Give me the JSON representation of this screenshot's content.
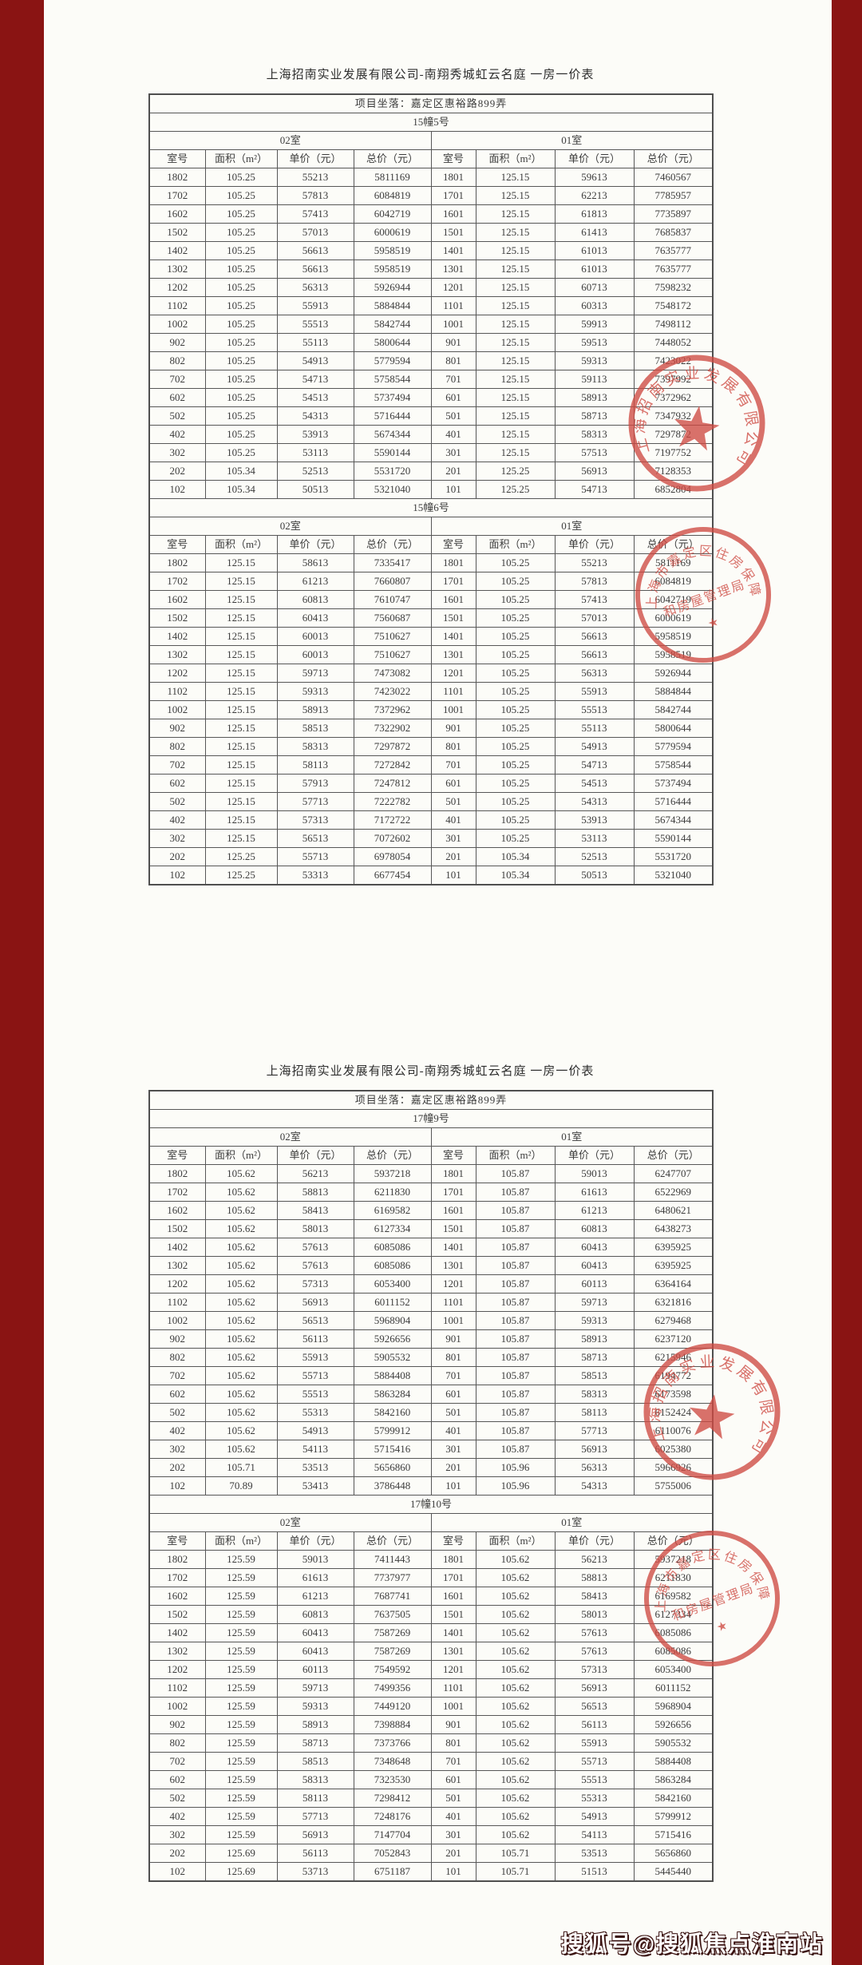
{
  "page": {
    "watermark": "搜狐号@搜狐焦点淮南站",
    "colors": {
      "border_maroon": "#8a1413",
      "paper": "#fcfcf8",
      "seal_red": "#cf4b43",
      "table_line": "#575757",
      "text": "#3c3c3c"
    }
  },
  "seals": {
    "company": {
      "icon": "five-pointed-star-icon",
      "text": "上海招南实业发展有限公司"
    },
    "government": {
      "arc_text": "上海市嘉定区住房保障",
      "line_text": "和房屋管理局"
    }
  },
  "documents": [
    {
      "title": "上海招南实业发展有限公司-南翔秀城虹云名庭 一房一价表",
      "location": "项目坐落：嘉定区惠裕路899弄",
      "unit_headers": [
        "02室",
        "01室"
      ],
      "column_headers": [
        "室号",
        "面积（m²）",
        "单价（元）",
        "总价（元）"
      ],
      "sections": [
        {
          "building": "15幢5号",
          "rows": [
            [
              "1802",
              "105.25",
              "55213",
              "5811169",
              "1801",
              "125.15",
              "59613",
              "7460567"
            ],
            [
              "1702",
              "105.25",
              "57813",
              "6084819",
              "1701",
              "125.15",
              "62213",
              "7785957"
            ],
            [
              "1602",
              "105.25",
              "57413",
              "6042719",
              "1601",
              "125.15",
              "61813",
              "7735897"
            ],
            [
              "1502",
              "105.25",
              "57013",
              "6000619",
              "1501",
              "125.15",
              "61413",
              "7685837"
            ],
            [
              "1402",
              "105.25",
              "56613",
              "5958519",
              "1401",
              "125.15",
              "61013",
              "7635777"
            ],
            [
              "1302",
              "105.25",
              "56613",
              "5958519",
              "1301",
              "125.15",
              "61013",
              "7635777"
            ],
            [
              "1202",
              "105.25",
              "56313",
              "5926944",
              "1201",
              "125.15",
              "60713",
              "7598232"
            ],
            [
              "1102",
              "105.25",
              "55913",
              "5884844",
              "1101",
              "125.15",
              "60313",
              "7548172"
            ],
            [
              "1002",
              "105.25",
              "55513",
              "5842744",
              "1001",
              "125.15",
              "59913",
              "7498112"
            ],
            [
              "902",
              "105.25",
              "55113",
              "5800644",
              "901",
              "125.15",
              "59513",
              "7448052"
            ],
            [
              "802",
              "105.25",
              "54913",
              "5779594",
              "801",
              "125.15",
              "59313",
              "7423022"
            ],
            [
              "702",
              "105.25",
              "54713",
              "5758544",
              "701",
              "125.15",
              "59113",
              "7397992"
            ],
            [
              "602",
              "105.25",
              "54513",
              "5737494",
              "601",
              "125.15",
              "58913",
              "7372962"
            ],
            [
              "502",
              "105.25",
              "54313",
              "5716444",
              "501",
              "125.15",
              "58713",
              "7347932"
            ],
            [
              "402",
              "105.25",
              "53913",
              "5674344",
              "401",
              "125.15",
              "58313",
              "7297872"
            ],
            [
              "302",
              "105.25",
              "53113",
              "5590144",
              "301",
              "125.15",
              "57513",
              "7197752"
            ],
            [
              "202",
              "105.34",
              "52513",
              "5531720",
              "201",
              "125.25",
              "56913",
              "7128353"
            ],
            [
              "102",
              "105.34",
              "50513",
              "5321040",
              "101",
              "125.25",
              "54713",
              "6852804"
            ]
          ]
        },
        {
          "building": "15幢6号",
          "rows": [
            [
              "1802",
              "125.15",
              "58613",
              "7335417",
              "1801",
              "105.25",
              "55213",
              "5811169"
            ],
            [
              "1702",
              "125.15",
              "61213",
              "7660807",
              "1701",
              "105.25",
              "57813",
              "6084819"
            ],
            [
              "1602",
              "125.15",
              "60813",
              "7610747",
              "1601",
              "105.25",
              "57413",
              "6042719"
            ],
            [
              "1502",
              "125.15",
              "60413",
              "7560687",
              "1501",
              "105.25",
              "57013",
              "6000619"
            ],
            [
              "1402",
              "125.15",
              "60013",
              "7510627",
              "1401",
              "105.25",
              "56613",
              "5958519"
            ],
            [
              "1302",
              "125.15",
              "60013",
              "7510627",
              "1301",
              "105.25",
              "56613",
              "5958519"
            ],
            [
              "1202",
              "125.15",
              "59713",
              "7473082",
              "1201",
              "105.25",
              "56313",
              "5926944"
            ],
            [
              "1102",
              "125.15",
              "59313",
              "7423022",
              "1101",
              "105.25",
              "55913",
              "5884844"
            ],
            [
              "1002",
              "125.15",
              "58913",
              "7372962",
              "1001",
              "105.25",
              "55513",
              "5842744"
            ],
            [
              "902",
              "125.15",
              "58513",
              "7322902",
              "901",
              "105.25",
              "55113",
              "5800644"
            ],
            [
              "802",
              "125.15",
              "58313",
              "7297872",
              "801",
              "105.25",
              "54913",
              "5779594"
            ],
            [
              "702",
              "125.15",
              "58113",
              "7272842",
              "701",
              "105.25",
              "54713",
              "5758544"
            ],
            [
              "602",
              "125.15",
              "57913",
              "7247812",
              "601",
              "105.25",
              "54513",
              "5737494"
            ],
            [
              "502",
              "125.15",
              "57713",
              "7222782",
              "501",
              "105.25",
              "54313",
              "5716444"
            ],
            [
              "402",
              "125.15",
              "57313",
              "7172722",
              "401",
              "105.25",
              "53913",
              "5674344"
            ],
            [
              "302",
              "125.15",
              "56513",
              "7072602",
              "301",
              "105.25",
              "53113",
              "5590144"
            ],
            [
              "202",
              "125.25",
              "55713",
              "6978054",
              "201",
              "105.34",
              "52513",
              "5531720"
            ],
            [
              "102",
              "125.25",
              "53313",
              "6677454",
              "101",
              "105.34",
              "50513",
              "5321040"
            ]
          ]
        }
      ]
    },
    {
      "title": "上海招南实业发展有限公司-南翔秀城虹云名庭 一房一价表",
      "location": "项目坐落：嘉定区惠裕路899弄",
      "unit_headers": [
        "02室",
        "01室"
      ],
      "column_headers": [
        "室号",
        "面积（m²）",
        "单价（元）",
        "总价（元）"
      ],
      "sections": [
        {
          "building": "17幢9号",
          "rows": [
            [
              "1802",
              "105.62",
              "56213",
              "5937218",
              "1801",
              "105.87",
              "59013",
              "6247707"
            ],
            [
              "1702",
              "105.62",
              "58813",
              "6211830",
              "1701",
              "105.87",
              "61613",
              "6522969"
            ],
            [
              "1602",
              "105.62",
              "58413",
              "6169582",
              "1601",
              "105.87",
              "61213",
              "6480621"
            ],
            [
              "1502",
              "105.62",
              "58013",
              "6127334",
              "1501",
              "105.87",
              "60813",
              "6438273"
            ],
            [
              "1402",
              "105.62",
              "57613",
              "6085086",
              "1401",
              "105.87",
              "60413",
              "6395925"
            ],
            [
              "1302",
              "105.62",
              "57613",
              "6085086",
              "1301",
              "105.87",
              "60413",
              "6395925"
            ],
            [
              "1202",
              "105.62",
              "57313",
              "6053400",
              "1201",
              "105.87",
              "60113",
              "6364164"
            ],
            [
              "1102",
              "105.62",
              "56913",
              "6011152",
              "1101",
              "105.87",
              "59713",
              "6321816"
            ],
            [
              "1002",
              "105.62",
              "56513",
              "5968904",
              "1001",
              "105.87",
              "59313",
              "6279468"
            ],
            [
              "902",
              "105.62",
              "56113",
              "5926656",
              "901",
              "105.87",
              "58913",
              "6237120"
            ],
            [
              "802",
              "105.62",
              "55913",
              "5905532",
              "801",
              "105.87",
              "58713",
              "6215946"
            ],
            [
              "702",
              "105.62",
              "55713",
              "5884408",
              "701",
              "105.87",
              "58513",
              "6194772"
            ],
            [
              "602",
              "105.62",
              "55513",
              "5863284",
              "601",
              "105.87",
              "58313",
              "6173598"
            ],
            [
              "502",
              "105.62",
              "55313",
              "5842160",
              "501",
              "105.87",
              "58113",
              "6152424"
            ],
            [
              "402",
              "105.62",
              "54913",
              "5799912",
              "401",
              "105.87",
              "57713",
              "6110076"
            ],
            [
              "302",
              "105.62",
              "54113",
              "5715416",
              "301",
              "105.87",
              "56913",
              "6025380"
            ],
            [
              "202",
              "105.71",
              "53513",
              "5656860",
              "201",
              "105.96",
              "56313",
              "5966926"
            ],
            [
              "102",
              "70.89",
              "53413",
              "3786448",
              "101",
              "105.96",
              "54313",
              "5755006"
            ]
          ]
        },
        {
          "building": "17幢10号",
          "rows": [
            [
              "1802",
              "125.59",
              "59013",
              "7411443",
              "1801",
              "105.62",
              "56213",
              "5937218"
            ],
            [
              "1702",
              "125.59",
              "61613",
              "7737977",
              "1701",
              "105.62",
              "58813",
              "6211830"
            ],
            [
              "1602",
              "125.59",
              "61213",
              "7687741",
              "1601",
              "105.62",
              "58413",
              "6169582"
            ],
            [
              "1502",
              "125.59",
              "60813",
              "7637505",
              "1501",
              "105.62",
              "58013",
              "6127334"
            ],
            [
              "1402",
              "125.59",
              "60413",
              "7587269",
              "1401",
              "105.62",
              "57613",
              "6085086"
            ],
            [
              "1302",
              "125.59",
              "60413",
              "7587269",
              "1301",
              "105.62",
              "57613",
              "6085086"
            ],
            [
              "1202",
              "125.59",
              "60113",
              "7549592",
              "1201",
              "105.62",
              "57313",
              "6053400"
            ],
            [
              "1102",
              "125.59",
              "59713",
              "7499356",
              "1101",
              "105.62",
              "56913",
              "6011152"
            ],
            [
              "1002",
              "125.59",
              "59313",
              "7449120",
              "1001",
              "105.62",
              "56513",
              "5968904"
            ],
            [
              "902",
              "125.59",
              "58913",
              "7398884",
              "901",
              "105.62",
              "56113",
              "5926656"
            ],
            [
              "802",
              "125.59",
              "58713",
              "7373766",
              "801",
              "105.62",
              "55913",
              "5905532"
            ],
            [
              "702",
              "125.59",
              "58513",
              "7348648",
              "701",
              "105.62",
              "55713",
              "5884408"
            ],
            [
              "602",
              "125.59",
              "58313",
              "7323530",
              "601",
              "105.62",
              "55513",
              "5863284"
            ],
            [
              "502",
              "125.59",
              "58113",
              "7298412",
              "501",
              "105.62",
              "55313",
              "5842160"
            ],
            [
              "402",
              "125.59",
              "57713",
              "7248176",
              "401",
              "105.62",
              "54913",
              "5799912"
            ],
            [
              "302",
              "125.59",
              "56913",
              "7147704",
              "301",
              "105.62",
              "54113",
              "5715416"
            ],
            [
              "202",
              "125.69",
              "56113",
              "7052843",
              "201",
              "105.71",
              "53513",
              "5656860"
            ],
            [
              "102",
              "125.69",
              "53713",
              "6751187",
              "101",
              "105.71",
              "51513",
              "5445440"
            ]
          ]
        }
      ]
    }
  ]
}
